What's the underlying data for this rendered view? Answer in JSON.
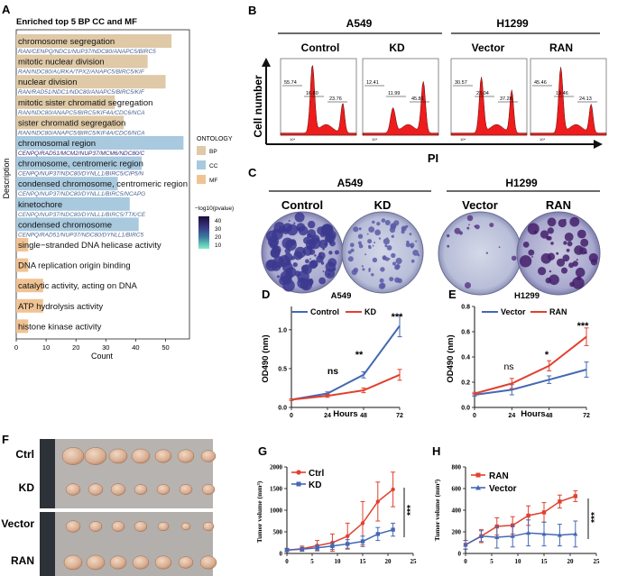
{
  "panels": {
    "A": {
      "letter": "A",
      "title": "Enriched top 5 BP CC and MF",
      "ylabel": "Description",
      "xlabel": "Count",
      "xticks": [
        "0",
        "10",
        "20",
        "30",
        "40",
        "50"
      ],
      "terms": [
        {
          "name": "chromosome segregation",
          "genes": "RAN/CENPQ/NDC1/NUP37/NDC80/ANAPC5/BIRC5",
          "count": 52,
          "cat": "BP",
          "p": 34
        },
        {
          "name": "mitotic nuclear division",
          "genes": "RAN/NDC80/AURKA/TPX2/ANAPC5/BIRC5/KIF",
          "count": 44,
          "cat": "BP",
          "p": 33
        },
        {
          "name": "nuclear division",
          "genes": "RAN/RAD51/NDC1/NDC80/ANAPC5/BIRC5/KIF",
          "count": 50,
          "cat": "BP",
          "p": 35
        },
        {
          "name": "mitotic sister chromatid segregation",
          "genes": "RAN/NDC80/ANAPC5/BIRC5/KIF4A/CDC6/NCA",
          "count": 33,
          "cat": "BP",
          "p": 33
        },
        {
          "name": "sister chromatid segregation",
          "genes": "RAN/NDC80/ANAPC5/BIRC5/KIF4A/CDC6/NCA",
          "count": 36,
          "cat": "BP",
          "p": 34
        },
        {
          "name": "chromosomal region",
          "genes": "CENPQ/RAD51/MCM2/NUP37/MCM6/NDC80/C",
          "count": 56,
          "cat": "CC",
          "p": 44
        },
        {
          "name": "chromosome, centromeric region",
          "genes": "CENPQ/NUP37/NDC80/DYNLL1/BIRC5/CIP5/N",
          "count": 42,
          "cat": "CC",
          "p": 36
        },
        {
          "name": "condensed chromosome, centromeric region",
          "genes": "CENPQ/NUP37/NDC80/DYNLL1/BIRC5/NCAPG",
          "count": 34,
          "cat": "CC",
          "p": 33
        },
        {
          "name": "kinetochore",
          "genes": "CENPQ/NUP37/NDC80/DYNLL1/BIRC5/TTK/CE",
          "count": 38,
          "cat": "CC",
          "p": 32
        },
        {
          "name": "condensed chromosome",
          "genes": "CENPQ/RAD51/NUP37/NDC80/DYNLL1/BIRC5",
          "count": 41,
          "cat": "CC",
          "p": 34
        },
        {
          "name": "single−stranded DNA helicase activity",
          "genes": "",
          "count": 4,
          "cat": "MF",
          "p": 12
        },
        {
          "name": "DNA replication origin binding",
          "genes": "",
          "count": 4,
          "cat": "MF",
          "p": 12
        },
        {
          "name": "catalytic activity, acting on DNA",
          "genes": "",
          "count": 9,
          "cat": "MF",
          "p": 11
        },
        {
          "name": "ATP hydrolysis activity",
          "genes": "",
          "count": 9,
          "cat": "MF",
          "p": 10
        },
        {
          "name": "histone kinase activity",
          "genes": "",
          "count": 4,
          "cat": "MF",
          "p": 10
        }
      ],
      "ontology_title": "ONTOLOGY",
      "ontology_items": [
        "BP",
        "CC",
        "MF"
      ],
      "pvalue_title": "−log10(pvalue)",
      "pvalue_ticks": [
        "40",
        "30",
        "20",
        "10"
      ]
    },
    "B": {
      "letter": "B",
      "group1": "A549",
      "group2": "H1299",
      "ylabel": "Cell number",
      "xlabel": "PI",
      "samples": [
        {
          "label": "Control",
          "values": [
            "55.74",
            "16.80",
            "23.76"
          ]
        },
        {
          "label": "KD",
          "values": [
            "12.41",
            "11.99",
            "45.81"
          ]
        },
        {
          "label": "Vector",
          "values": [
            "30.57",
            "23.04",
            "37.28"
          ]
        },
        {
          "label": "RAN",
          "values": [
            "45.46",
            "19.46",
            "24.13"
          ]
        }
      ],
      "histogram_tick": "10⁴"
    },
    "C": {
      "letter": "C",
      "group1": "A549",
      "group2": "H1299",
      "labels": [
        "Control",
        "KD",
        "Vector",
        "RAN"
      ]
    },
    "D": {
      "letter": "D",
      "title": "A549",
      "series": [
        "Control",
        "KD"
      ],
      "ylabel": "OD490 (nm)",
      "xlabel": "Hours",
      "sig": [
        "ns",
        "**",
        "***"
      ],
      "xticks": [
        "0",
        "24",
        "48",
        "72"
      ],
      "yticks": [
        "0.0",
        "0.5",
        "1.0"
      ]
    },
    "E": {
      "letter": "E",
      "title": "H1299",
      "series": [
        "Vector",
        "RAN"
      ],
      "ylabel": "OD490 (nm)",
      "xlabel": "Hours",
      "sig": [
        "ns",
        "*",
        "***"
      ],
      "xticks": [
        "0",
        "24",
        "48",
        "72"
      ],
      "yticks": [
        "0.0",
        "0.2",
        "0.4",
        "0.6",
        "0.8"
      ]
    },
    "F": {
      "letter": "F",
      "rows": [
        "Ctrl",
        "KD",
        "Vector",
        "RAN"
      ]
    },
    "G": {
      "letter": "G",
      "series": [
        "Ctrl",
        "KD"
      ],
      "ylabel": "Tumor volume (mm³)",
      "sig": "***",
      "xticks": [
        "0",
        "5",
        "10",
        "15",
        "20",
        "25"
      ],
      "yticks": [
        "0",
        "500",
        "1000",
        "1500",
        "2000"
      ]
    },
    "H": {
      "letter": "H",
      "series": [
        "RAN",
        "Vector"
      ],
      "ylabel": "Tumor volume (mm³)",
      "sig": "***",
      "xticks": [
        "0",
        "5",
        "10",
        "15",
        "20",
        "25"
      ],
      "yticks": [
        "0",
        "200",
        "400",
        "600",
        "800"
      ]
    }
  },
  "colors": {
    "BP": "#dfc9a6",
    "CC": "#a8c9de",
    "MF": "#f0c394",
    "blue": "#4468b3",
    "red": "#e0412f",
    "flow": "#ee1c1c",
    "gene_high": "#332a78",
    "gene_low": "#7ae5bf"
  },
  "chart_data": [
    {
      "type": "bar",
      "title": "Enriched top 5 BP CC and MF",
      "xlabel": "Count",
      "ylabel": "Description",
      "orientation": "horizontal",
      "categories": [
        "chromosome segregation",
        "mitotic nuclear division",
        "nuclear division",
        "mitotic sister chromatid segregation",
        "sister chromatid segregation",
        "chromosomal region",
        "chromosome, centromeric region",
        "condensed chromosome, centromeric region",
        "kinetochore",
        "condensed chromosome",
        "single−stranded DNA helicase activity",
        "DNA replication origin binding",
        "catalytic activity, acting on DNA",
        "ATP hydrolysis activity",
        "histone kinase activity"
      ],
      "values": [
        52,
        44,
        50,
        33,
        36,
        56,
        42,
        34,
        38,
        41,
        4,
        4,
        9,
        9,
        4
      ],
      "xlim": [
        0,
        58
      ]
    },
    {
      "type": "line",
      "title": "A549",
      "xlabel": "Hours",
      "ylabel": "OD490 (nm)",
      "x": [
        0,
        24,
        48,
        72
      ],
      "ylim": [
        0,
        1.3
      ],
      "series": [
        {
          "name": "Control",
          "values": [
            0.1,
            0.18,
            0.42,
            1.05
          ],
          "err": [
            0.01,
            0.02,
            0.04,
            0.14
          ]
        },
        {
          "name": "KD",
          "values": [
            0.1,
            0.15,
            0.22,
            0.42
          ],
          "err": [
            0.01,
            0.02,
            0.03,
            0.07
          ]
        }
      ]
    },
    {
      "type": "line",
      "title": "H1299",
      "xlabel": "Hours",
      "ylabel": "OD490 (nm)",
      "x": [
        0,
        24,
        48,
        72
      ],
      "ylim": [
        0,
        0.8
      ],
      "series": [
        {
          "name": "Vector",
          "values": [
            0.1,
            0.14,
            0.22,
            0.3
          ],
          "err": [
            0.01,
            0.04,
            0.03,
            0.06
          ]
        },
        {
          "name": "RAN",
          "values": [
            0.11,
            0.19,
            0.33,
            0.56
          ],
          "err": [
            0.01,
            0.04,
            0.04,
            0.07
          ]
        }
      ]
    },
    {
      "type": "line",
      "xlabel": "",
      "ylabel": "Tumor volume (mm³)",
      "ylim": [
        0,
        2000
      ],
      "x": [
        0,
        3,
        6,
        9,
        12,
        15,
        18,
        21
      ],
      "series": [
        {
          "name": "Ctrl",
          "values": [
            80,
            110,
            180,
            250,
            400,
            700,
            1200,
            1480
          ],
          "err": [
            40,
            60,
            120,
            200,
            300,
            500,
            450,
            400
          ]
        },
        {
          "name": "KD",
          "values": [
            80,
            100,
            130,
            170,
            220,
            280,
            450,
            550
          ],
          "err": [
            30,
            40,
            60,
            80,
            100,
            120,
            150,
            150
          ]
        }
      ]
    },
    {
      "type": "line",
      "xlabel": "",
      "ylabel": "Tumor volume (mm³)",
      "ylim": [
        0,
        800
      ],
      "x": [
        0,
        3,
        6,
        9,
        12,
        15,
        18,
        21
      ],
      "series": [
        {
          "name": "RAN",
          "values": [
            80,
            160,
            250,
            260,
            350,
            380,
            480,
            530
          ],
          "err": [
            40,
            60,
            80,
            80,
            90,
            90,
            60,
            50
          ]
        },
        {
          "name": "Vector",
          "values": [
            80,
            160,
            150,
            160,
            190,
            180,
            170,
            180
          ],
          "err": [
            40,
            50,
            100,
            100,
            120,
            110,
            100,
            120
          ]
        }
      ]
    }
  ]
}
